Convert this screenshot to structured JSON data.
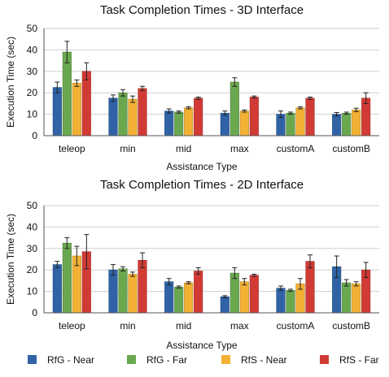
{
  "legend": {
    "entries": [
      {
        "name": "RfG - Near",
        "color": "#2f63a6"
      },
      {
        "name": "RfG - Far",
        "color": "#6aa84f"
      },
      {
        "name": "RfS - Near",
        "color": "#f2b134"
      },
      {
        "name": "RfS - Far",
        "color": "#d23b35"
      }
    ]
  },
  "chart_data": [
    {
      "type": "bar",
      "title": "Task Completion Times - 3D Interface",
      "xlabel": "Assistance Type",
      "ylabel": "Execution Time (sec)",
      "ylim": [
        0,
        50
      ],
      "yticks": [
        0,
        10,
        20,
        30,
        40,
        50
      ],
      "grid": true,
      "categories": [
        "teleop",
        "min",
        "mid",
        "max",
        "customA",
        "customB"
      ],
      "series": [
        {
          "name": "RfG - Near",
          "color": "#2f63a6",
          "values": [
            22.5,
            17.5,
            11.5,
            10.5,
            10,
            10
          ],
          "errors": [
            2.5,
            1.5,
            1,
            1,
            1.5,
            0.8
          ]
        },
        {
          "name": "RfG - Far",
          "color": "#6aa84f",
          "values": [
            39,
            20,
            11,
            25,
            10.5,
            10.5
          ],
          "errors": [
            5,
            1.5,
            0.5,
            2,
            0.5,
            0.5
          ]
        },
        {
          "name": "RfS - Near",
          "color": "#f2b134",
          "values": [
            24.5,
            17,
            13,
            11.5,
            13,
            12
          ],
          "errors": [
            1.5,
            1.5,
            0.5,
            0.5,
            0.5,
            0.8
          ]
        },
        {
          "name": "RfS - Far",
          "color": "#d23b35",
          "values": [
            30,
            22,
            17.5,
            18,
            17.5,
            17.5
          ],
          "errors": [
            4,
            1,
            0.5,
            0.5,
            0.5,
            2.5
          ]
        }
      ]
    },
    {
      "type": "bar",
      "title": "Task Completion Times - 2D Interface",
      "xlabel": "Assistance Type",
      "ylabel": "Execution Time (sec)",
      "ylim": [
        0,
        50
      ],
      "yticks": [
        0,
        10,
        20,
        30,
        40,
        50
      ],
      "grid": true,
      "categories": [
        "teleop",
        "min",
        "mid",
        "max",
        "customA",
        "customB"
      ],
      "series": [
        {
          "name": "RfG - Near",
          "color": "#2f63a6",
          "values": [
            22.5,
            20,
            14.5,
            7.5,
            11.5,
            21.5
          ],
          "errors": [
            1.5,
            2.5,
            1.5,
            0.5,
            1,
            5
          ]
        },
        {
          "name": "RfG - Far",
          "color": "#6aa84f",
          "values": [
            32.5,
            20.5,
            12,
            18.5,
            10.5,
            14
          ],
          "errors": [
            2.5,
            1,
            0.5,
            2.5,
            0.5,
            1.5
          ]
        },
        {
          "name": "RfS - Near",
          "color": "#f2b134",
          "values": [
            26.5,
            18,
            14,
            14.5,
            13.5,
            13.5
          ],
          "errors": [
            4.5,
            1,
            0.5,
            1.5,
            2.5,
            1
          ]
        },
        {
          "name": "RfS - Far",
          "color": "#d23b35",
          "values": [
            28.5,
            24.5,
            19.5,
            17.5,
            24,
            20
          ],
          "errors": [
            8,
            3.5,
            1.5,
            0.5,
            3,
            3.5
          ]
        }
      ]
    }
  ]
}
